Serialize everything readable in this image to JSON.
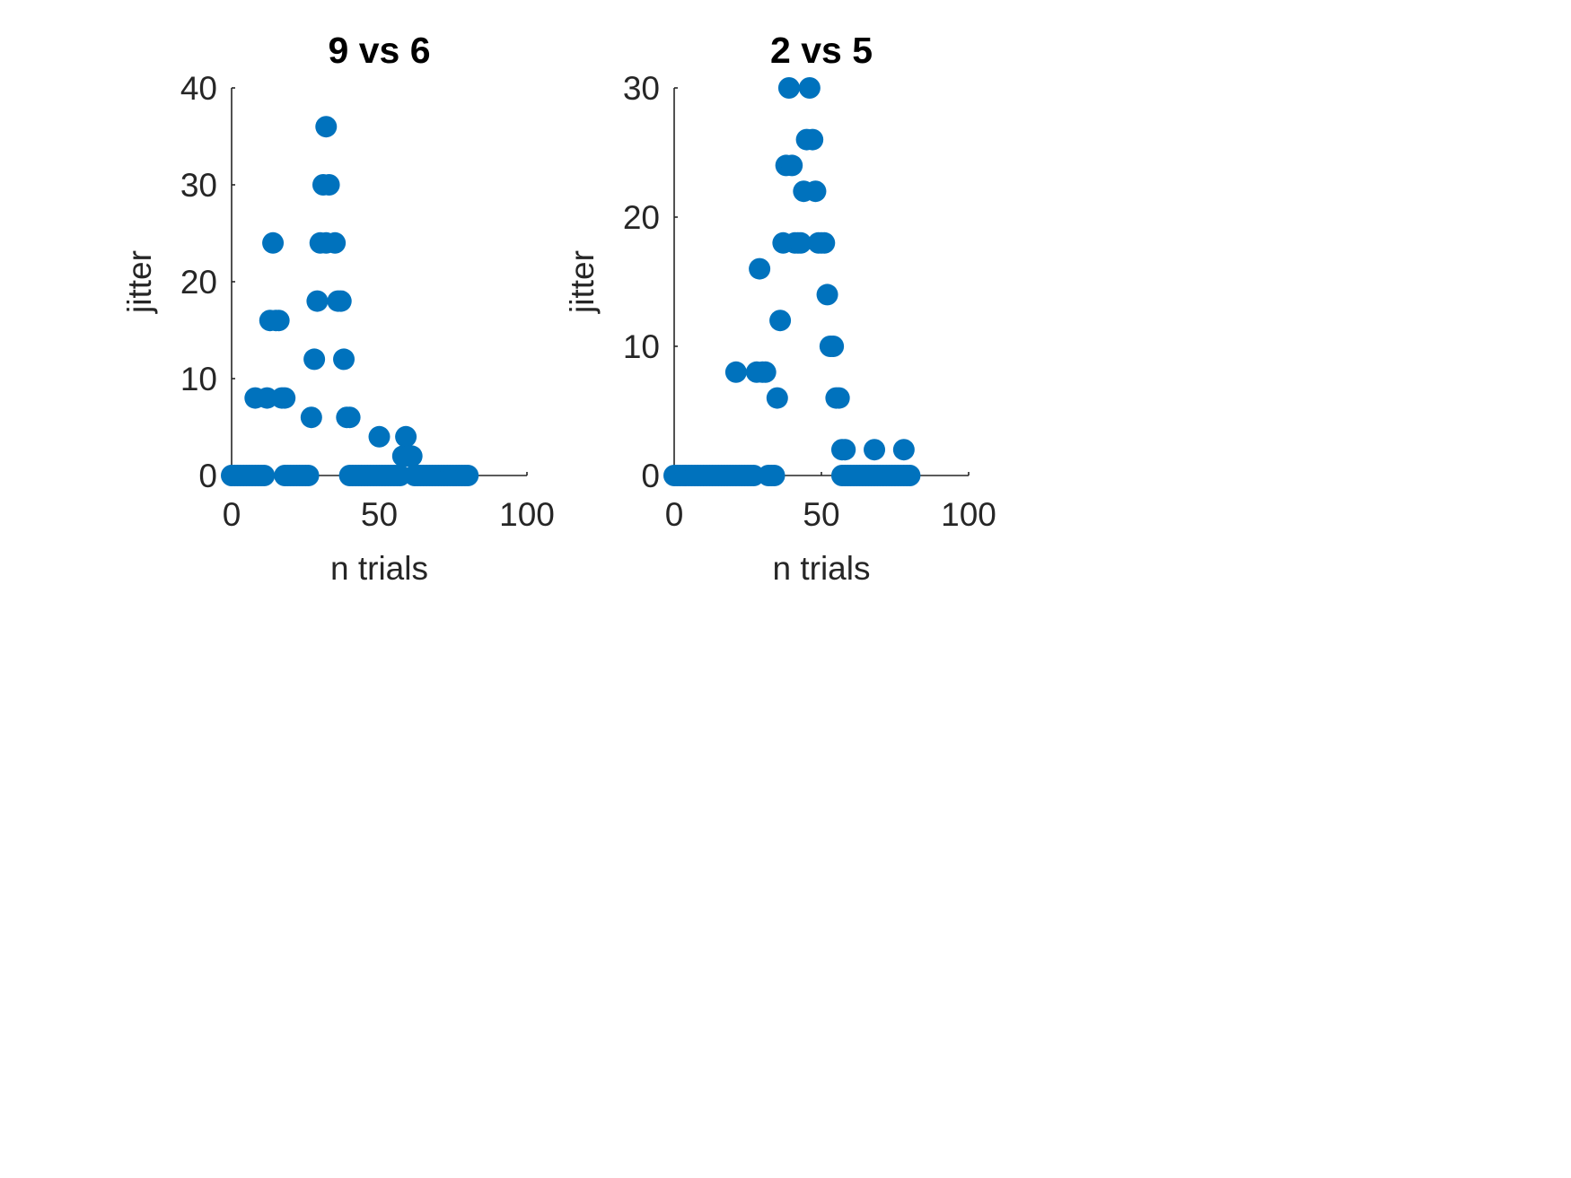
{
  "figure": {
    "background": "#ffffff",
    "marker_color": "#0072bd"
  },
  "chart_data": [
    {
      "type": "scatter",
      "title": "9 vs 6",
      "xlabel": "n trials",
      "ylabel": "jitter",
      "xlim": [
        0,
        100
      ],
      "ylim": [
        0,
        40
      ],
      "xticks": [
        "0",
        "50",
        "100"
      ],
      "yticks": [
        "0",
        "10",
        "20",
        "30",
        "40"
      ],
      "grid": false,
      "legend": "none",
      "series": [
        {
          "color": "#0072bd",
          "points": [
            {
              "x": 0,
              "y": 0
            },
            {
              "x": 1,
              "y": 0
            },
            {
              "x": 2,
              "y": 0
            },
            {
              "x": 3,
              "y": 0
            },
            {
              "x": 4,
              "y": 0
            },
            {
              "x": 5,
              "y": 0
            },
            {
              "x": 6,
              "y": 0
            },
            {
              "x": 7,
              "y": 0
            },
            {
              "x": 8,
              "y": 0
            },
            {
              "x": 9,
              "y": 0
            },
            {
              "x": 10,
              "y": 0
            },
            {
              "x": 11,
              "y": 0
            },
            {
              "x": 8,
              "y": 8
            },
            {
              "x": 12,
              "y": 8
            },
            {
              "x": 13,
              "y": 16
            },
            {
              "x": 14,
              "y": 24
            },
            {
              "x": 15,
              "y": 16
            },
            {
              "x": 16,
              "y": 16
            },
            {
              "x": 17,
              "y": 8
            },
            {
              "x": 18,
              "y": 8
            },
            {
              "x": 18,
              "y": 0
            },
            {
              "x": 19,
              "y": 0
            },
            {
              "x": 20,
              "y": 0
            },
            {
              "x": 21,
              "y": 0
            },
            {
              "x": 22,
              "y": 0
            },
            {
              "x": 23,
              "y": 0
            },
            {
              "x": 24,
              "y": 0
            },
            {
              "x": 25,
              "y": 0
            },
            {
              "x": 26,
              "y": 0
            },
            {
              "x": 27,
              "y": 6
            },
            {
              "x": 28,
              "y": 12
            },
            {
              "x": 29,
              "y": 18
            },
            {
              "x": 30,
              "y": 24
            },
            {
              "x": 31,
              "y": 30
            },
            {
              "x": 32,
              "y": 24
            },
            {
              "x": 32,
              "y": 36
            },
            {
              "x": 33,
              "y": 30
            },
            {
              "x": 35,
              "y": 24
            },
            {
              "x": 36,
              "y": 18
            },
            {
              "x": 37,
              "y": 18
            },
            {
              "x": 38,
              "y": 12
            },
            {
              "x": 39,
              "y": 6
            },
            {
              "x": 40,
              "y": 6
            },
            {
              "x": 40,
              "y": 0
            },
            {
              "x": 41,
              "y": 0
            },
            {
              "x": 42,
              "y": 0
            },
            {
              "x": 43,
              "y": 0
            },
            {
              "x": 44,
              "y": 0
            },
            {
              "x": 45,
              "y": 0
            },
            {
              "x": 46,
              "y": 0
            },
            {
              "x": 47,
              "y": 0
            },
            {
              "x": 48,
              "y": 0
            },
            {
              "x": 49,
              "y": 0
            },
            {
              "x": 50,
              "y": 4
            },
            {
              "x": 50,
              "y": 0
            },
            {
              "x": 51,
              "y": 0
            },
            {
              "x": 52,
              "y": 0
            },
            {
              "x": 53,
              "y": 0
            },
            {
              "x": 54,
              "y": 0
            },
            {
              "x": 55,
              "y": 0
            },
            {
              "x": 56,
              "y": 0
            },
            {
              "x": 57,
              "y": 0
            },
            {
              "x": 58,
              "y": 2
            },
            {
              "x": 59,
              "y": 4
            },
            {
              "x": 60,
              "y": 2
            },
            {
              "x": 61,
              "y": 2
            },
            {
              "x": 62,
              "y": 0
            },
            {
              "x": 63,
              "y": 0
            },
            {
              "x": 64,
              "y": 0
            },
            {
              "x": 65,
              "y": 0
            },
            {
              "x": 66,
              "y": 0
            },
            {
              "x": 67,
              "y": 0
            },
            {
              "x": 68,
              "y": 0
            },
            {
              "x": 69,
              "y": 0
            },
            {
              "x": 70,
              "y": 0
            },
            {
              "x": 71,
              "y": 0
            },
            {
              "x": 72,
              "y": 0
            },
            {
              "x": 73,
              "y": 0
            },
            {
              "x": 74,
              "y": 0
            },
            {
              "x": 75,
              "y": 0
            },
            {
              "x": 76,
              "y": 0
            },
            {
              "x": 77,
              "y": 0
            },
            {
              "x": 78,
              "y": 0
            },
            {
              "x": 79,
              "y": 0
            },
            {
              "x": 80,
              "y": 0
            }
          ]
        }
      ]
    },
    {
      "type": "scatter",
      "title": "2 vs 5",
      "xlabel": "n trials",
      "ylabel": "jitter",
      "xlim": [
        0,
        100
      ],
      "ylim": [
        0,
        30
      ],
      "xticks": [
        "0",
        "50",
        "100"
      ],
      "yticks": [
        "0",
        "10",
        "20",
        "30"
      ],
      "grid": false,
      "legend": "none",
      "series": [
        {
          "color": "#0072bd",
          "points": [
            {
              "x": 0,
              "y": 0
            },
            {
              "x": 1,
              "y": 0
            },
            {
              "x": 2,
              "y": 0
            },
            {
              "x": 3,
              "y": 0
            },
            {
              "x": 4,
              "y": 0
            },
            {
              "x": 5,
              "y": 0
            },
            {
              "x": 6,
              "y": 0
            },
            {
              "x": 7,
              "y": 0
            },
            {
              "x": 8,
              "y": 0
            },
            {
              "x": 9,
              "y": 0
            },
            {
              "x": 10,
              "y": 0
            },
            {
              "x": 11,
              "y": 0
            },
            {
              "x": 12,
              "y": 0
            },
            {
              "x": 13,
              "y": 0
            },
            {
              "x": 14,
              "y": 0
            },
            {
              "x": 15,
              "y": 0
            },
            {
              "x": 16,
              "y": 0
            },
            {
              "x": 17,
              "y": 0
            },
            {
              "x": 18,
              "y": 0
            },
            {
              "x": 19,
              "y": 0
            },
            {
              "x": 20,
              "y": 0
            },
            {
              "x": 21,
              "y": 8
            },
            {
              "x": 21,
              "y": 0
            },
            {
              "x": 22,
              "y": 0
            },
            {
              "x": 23,
              "y": 0
            },
            {
              "x": 24,
              "y": 0
            },
            {
              "x": 25,
              "y": 0
            },
            {
              "x": 26,
              "y": 0
            },
            {
              "x": 27,
              "y": 0
            },
            {
              "x": 28,
              "y": 8
            },
            {
              "x": 29,
              "y": 16
            },
            {
              "x": 30,
              "y": 8
            },
            {
              "x": 31,
              "y": 8
            },
            {
              "x": 32,
              "y": 0
            },
            {
              "x": 33,
              "y": 0
            },
            {
              "x": 34,
              "y": 0
            },
            {
              "x": 35,
              "y": 6
            },
            {
              "x": 36,
              "y": 12
            },
            {
              "x": 37,
              "y": 18
            },
            {
              "x": 38,
              "y": 24
            },
            {
              "x": 39,
              "y": 30
            },
            {
              "x": 40,
              "y": 24
            },
            {
              "x": 41,
              "y": 18
            },
            {
              "x": 42,
              "y": 18
            },
            {
              "x": 43,
              "y": 18
            },
            {
              "x": 44,
              "y": 22
            },
            {
              "x": 45,
              "y": 26
            },
            {
              "x": 46,
              "y": 30
            },
            {
              "x": 47,
              "y": 26
            },
            {
              "x": 48,
              "y": 22
            },
            {
              "x": 49,
              "y": 18
            },
            {
              "x": 50,
              "y": 18
            },
            {
              "x": 51,
              "y": 18
            },
            {
              "x": 52,
              "y": 14
            },
            {
              "x": 53,
              "y": 10
            },
            {
              "x": 54,
              "y": 10
            },
            {
              "x": 55,
              "y": 6
            },
            {
              "x": 56,
              "y": 6
            },
            {
              "x": 57,
              "y": 2
            },
            {
              "x": 58,
              "y": 2
            },
            {
              "x": 57,
              "y": 0
            },
            {
              "x": 58,
              "y": 0
            },
            {
              "x": 59,
              "y": 0
            },
            {
              "x": 60,
              "y": 0
            },
            {
              "x": 61,
              "y": 0
            },
            {
              "x": 62,
              "y": 0
            },
            {
              "x": 63,
              "y": 0
            },
            {
              "x": 64,
              "y": 0
            },
            {
              "x": 65,
              "y": 0
            },
            {
              "x": 66,
              "y": 0
            },
            {
              "x": 67,
              "y": 0
            },
            {
              "x": 68,
              "y": 2
            },
            {
              "x": 68,
              "y": 0
            },
            {
              "x": 69,
              "y": 0
            },
            {
              "x": 70,
              "y": 0
            },
            {
              "x": 71,
              "y": 0
            },
            {
              "x": 72,
              "y": 0
            },
            {
              "x": 73,
              "y": 0
            },
            {
              "x": 74,
              "y": 0
            },
            {
              "x": 75,
              "y": 0
            },
            {
              "x": 76,
              "y": 0
            },
            {
              "x": 77,
              "y": 0
            },
            {
              "x": 78,
              "y": 2
            },
            {
              "x": 78,
              "y": 0
            },
            {
              "x": 79,
              "y": 0
            },
            {
              "x": 80,
              "y": 0
            }
          ]
        }
      ]
    }
  ]
}
